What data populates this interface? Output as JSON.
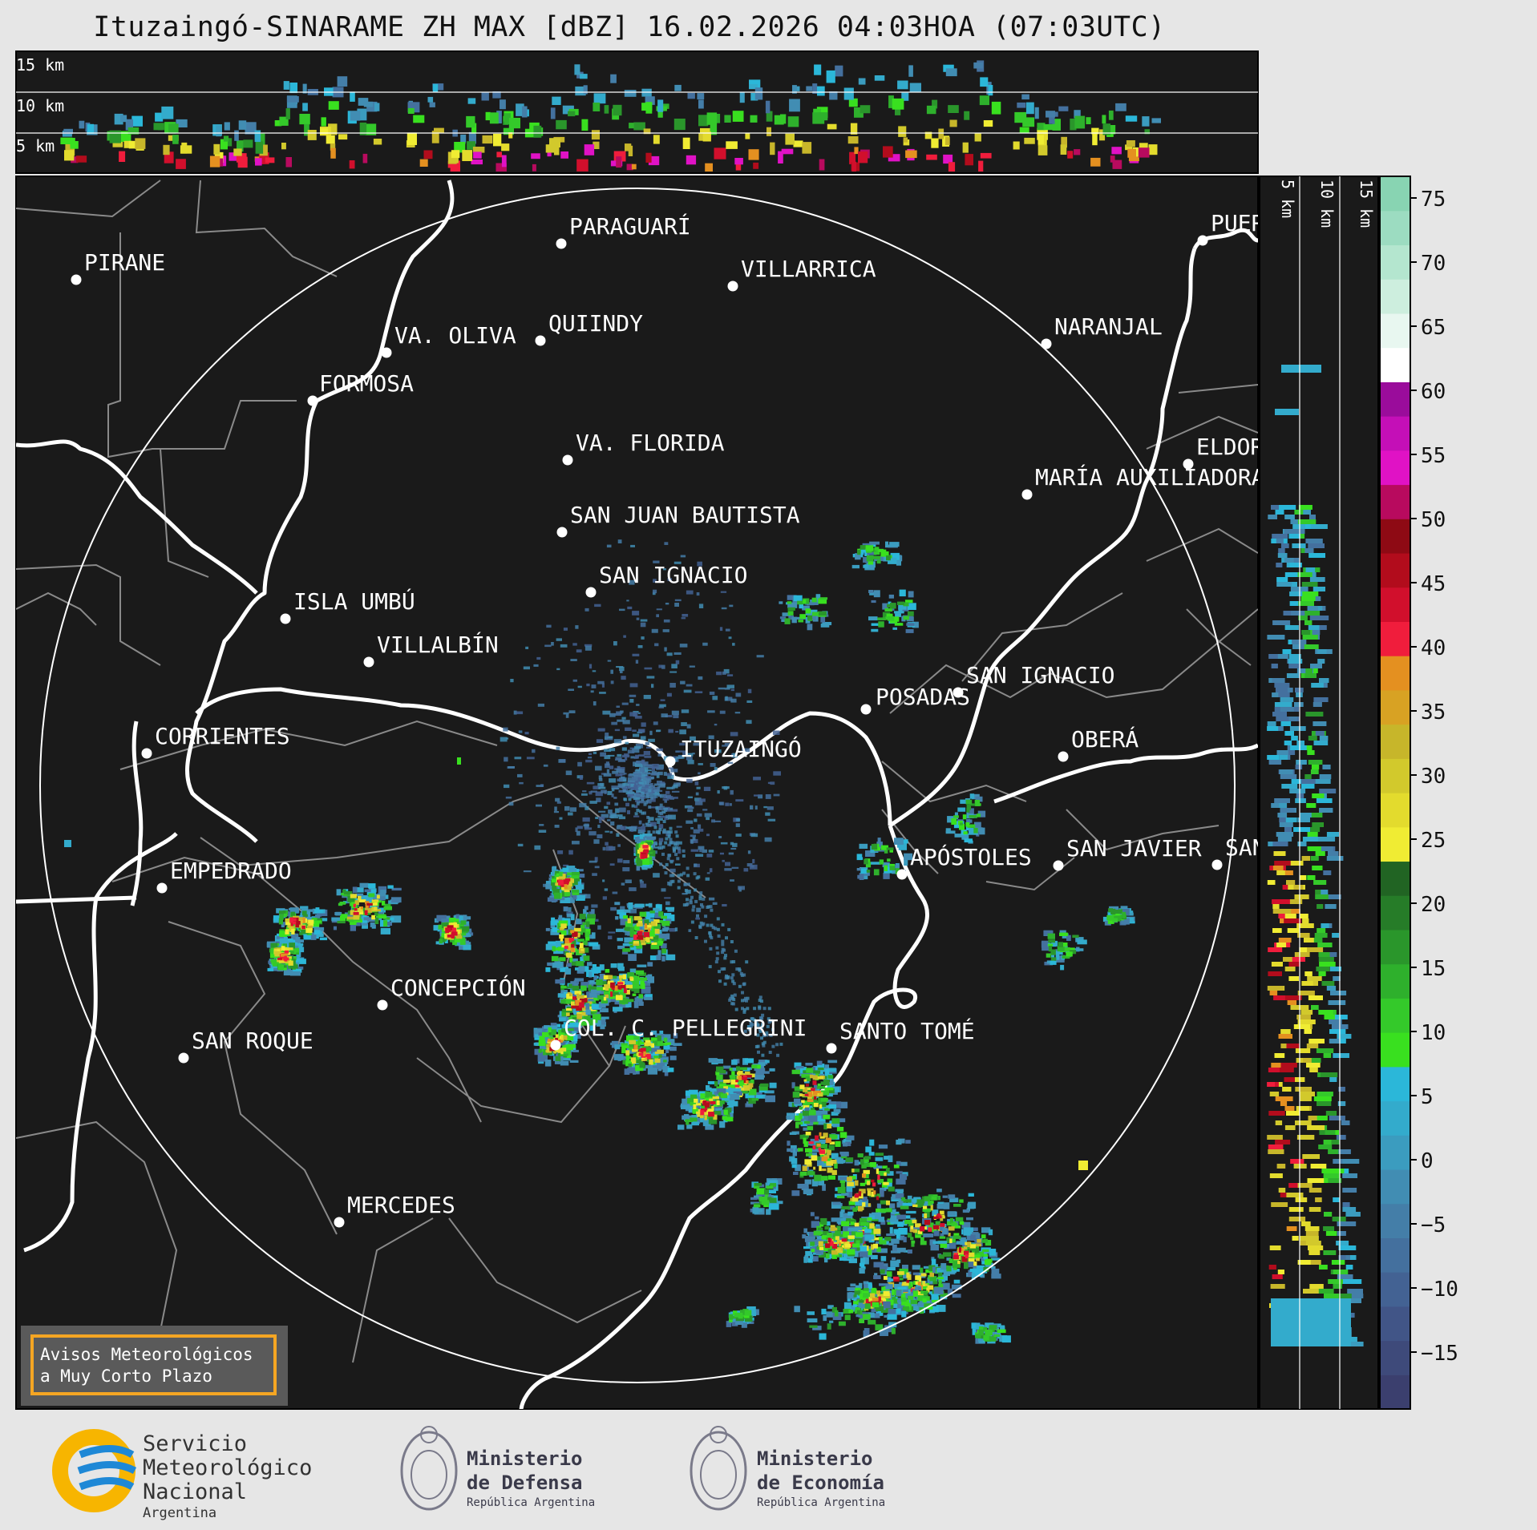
{
  "title": "Ituzaingó-SINARAME ZH MAX [dBZ] 16.02.2026 04:03HOA (07:03UTC)",
  "top_panel": {
    "height_labels": [
      "15 km",
      "10 km",
      "5 km"
    ]
  },
  "side_panel": {
    "height_labels": [
      "5 km",
      "10 km",
      "15 km"
    ]
  },
  "colorbar": {
    "ticks": [
      "75",
      "70",
      "65",
      "60",
      "55",
      "50",
      "45",
      "40",
      "35",
      "30",
      "25",
      "20",
      "15",
      "10",
      "5",
      "0",
      "−5",
      "−10",
      "−15"
    ],
    "colors": [
      "#3b3f6e",
      "#3e4a7a",
      "#415587",
      "#436293",
      "#44709e",
      "#447ea8",
      "#418db3",
      "#3b9cbf",
      "#33abcc",
      "#2bb7d9",
      "#39e01f",
      "#34c92a",
      "#2eb02c",
      "#2a962b",
      "#267c28",
      "#216423",
      "#f0ec33",
      "#e3db2d",
      "#d2c92c",
      "#c7b62a",
      "#d8a223",
      "#e49020",
      "#f01d3c",
      "#d10f2c",
      "#b20c1c",
      "#8e0a14",
      "#b80a5e",
      "#e012c5",
      "#c40fb7",
      "#9a0c9b",
      "#ffffff",
      "#e8f7f0",
      "#cdeede",
      "#b4e6cf",
      "#9cdcc1",
      "#88d4b2"
    ]
  },
  "map": {
    "places": [
      {
        "name": "PIRANE"
      },
      {
        "name": "PARAGUARÍ"
      },
      {
        "name": "VILLARRICA"
      },
      {
        "name": "VA. OLIVA"
      },
      {
        "name": "QUIINDY"
      },
      {
        "name": "FORMOSA"
      },
      {
        "name": "NARANJAL"
      },
      {
        "name": "VA. FLORIDA"
      },
      {
        "name": "ELDORADO"
      },
      {
        "name": "MARÍA AUXILIADORA"
      },
      {
        "name": "SAN JUAN BAUTISTA"
      },
      {
        "name": "SAN IGNACIO"
      },
      {
        "name": "ISLA UMBÚ"
      },
      {
        "name": "VILLALBÍN"
      },
      {
        "name": "SAN IGNACIO"
      },
      {
        "name": "POSADAS"
      },
      {
        "name": "CORRIENTES"
      },
      {
        "name": "ITUZAINGÓ"
      },
      {
        "name": "OBERÁ"
      },
      {
        "name": "EMPEDRADO"
      },
      {
        "name": "APÓSTOLES"
      },
      {
        "name": "SAN JAVIER"
      },
      {
        "name": "SAN"
      },
      {
        "name": "CONCEPCIÓN"
      },
      {
        "name": "COL. C. PELLEGRINI"
      },
      {
        "name": "SANTO TOMÉ"
      },
      {
        "name": "SAN ROQUE"
      },
      {
        "name": "MERCEDES"
      },
      {
        "name": "PUERTO"
      }
    ],
    "warning_box": {
      "line1": "Avisos Meteorológicos",
      "line2": "a Muy Corto Plazo"
    }
  },
  "footer": {
    "smn": {
      "line1": "Servicio",
      "line2": "Meteorológico",
      "line3": "Nacional",
      "line4": "Argentina"
    },
    "defensa": {
      "line1": "Ministerio",
      "line2": "de Defensa",
      "line3": "República Argentina"
    },
    "economia": {
      "line1": "Ministerio",
      "line2": "de Economía",
      "line3": "República Argentina"
    }
  },
  "colors": {
    "map_background": "#1a1a1a",
    "river": "#ffffff",
    "border": "#8a8a8a",
    "page_background": "#e6e6e6"
  }
}
